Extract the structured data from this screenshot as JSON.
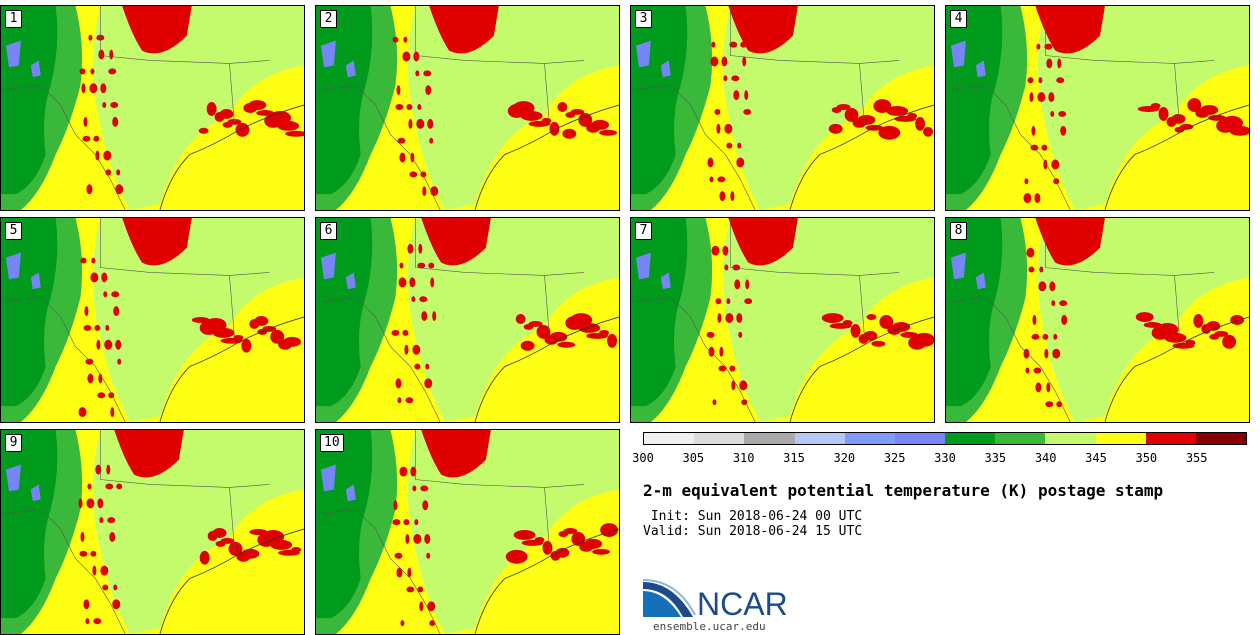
{
  "panels": [
    {
      "label": "1"
    },
    {
      "label": "2"
    },
    {
      "label": "3"
    },
    {
      "label": "4"
    },
    {
      "label": "5"
    },
    {
      "label": "6"
    },
    {
      "label": "7"
    },
    {
      "label": "8"
    },
    {
      "label": "9"
    },
    {
      "label": "10"
    }
  ],
  "colorbar": {
    "colors": [
      "#f0f0f0",
      "#dcdcdc",
      "#aaaaaa",
      "#b5c8f5",
      "#7f9af7",
      "#7686f5",
      "#009a1c",
      "#3ab83a",
      "#c3fb6d",
      "#ffff14",
      "#e00000",
      "#880000"
    ],
    "ticks": [
      "300",
      "305",
      "310",
      "315",
      "320",
      "325",
      "330",
      "335",
      "340",
      "345",
      "350",
      "355"
    ]
  },
  "title": "2-m equivalent potential temperature (K) postage stamp",
  "init_line": " Init: Sun 2018-06-24 00 UTC",
  "valid_line": "Valid: Sun 2018-06-24 15 UTC",
  "logo_text": "NCAR",
  "url": "ensemble.ucar.edu",
  "colors": {
    "dark_green": "#009a1c",
    "mid_green": "#3ab83a",
    "light_green": "#c3fb6d",
    "yellow": "#ffff14",
    "red": "#e00000",
    "blue": "#7686f5"
  }
}
